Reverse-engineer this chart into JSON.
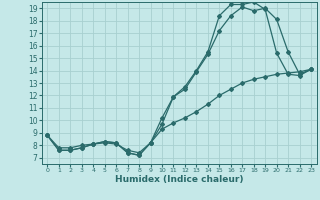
{
  "xlabel": "Humidex (Indice chaleur)",
  "bg_color": "#c5e8e8",
  "grid_color": "#a8d0d0",
  "line_color": "#2a6b6b",
  "xlim": [
    -0.5,
    23.5
  ],
  "ylim": [
    6.5,
    19.5
  ],
  "xticks": [
    0,
    1,
    2,
    3,
    4,
    5,
    6,
    7,
    8,
    9,
    10,
    11,
    12,
    13,
    14,
    15,
    16,
    17,
    18,
    19,
    20,
    21,
    22,
    23
  ],
  "yticks": [
    7,
    8,
    9,
    10,
    11,
    12,
    13,
    14,
    15,
    16,
    17,
    18,
    19
  ],
  "line1": {
    "x": [
      0,
      1,
      2,
      3,
      4,
      5,
      6,
      7,
      8,
      9,
      10,
      11,
      12,
      13,
      14,
      15,
      16,
      17,
      18,
      19,
      20,
      21,
      22,
      23
    ],
    "y": [
      8.8,
      7.6,
      7.6,
      7.8,
      8.1,
      8.3,
      8.2,
      7.4,
      7.2,
      8.2,
      10.2,
      11.9,
      12.7,
      14.0,
      15.5,
      18.4,
      19.3,
      19.3,
      19.5,
      18.9,
      15.4,
      13.7,
      13.6,
      14.1
    ]
  },
  "line2": {
    "x": [
      0,
      1,
      2,
      3,
      4,
      5,
      6,
      7,
      8,
      9,
      10,
      11,
      12,
      13,
      14,
      15,
      16,
      17,
      18,
      19,
      20,
      21,
      22,
      23
    ],
    "y": [
      8.8,
      7.6,
      7.6,
      7.8,
      8.1,
      8.3,
      8.2,
      7.4,
      7.2,
      8.2,
      9.7,
      11.9,
      12.5,
      13.9,
      15.3,
      17.2,
      18.4,
      19.1,
      18.8,
      19.0,
      18.1,
      15.5,
      13.7,
      14.1
    ]
  },
  "line3": {
    "x": [
      0,
      1,
      2,
      3,
      4,
      5,
      6,
      7,
      8,
      9,
      10,
      11,
      12,
      13,
      14,
      15,
      16,
      17,
      18,
      19,
      20,
      21,
      22,
      23
    ],
    "y": [
      8.8,
      7.8,
      7.8,
      8.0,
      8.1,
      8.2,
      8.1,
      7.6,
      7.4,
      8.2,
      9.3,
      9.8,
      10.2,
      10.7,
      11.3,
      12.0,
      12.5,
      13.0,
      13.3,
      13.5,
      13.7,
      13.8,
      13.9,
      14.1
    ]
  }
}
